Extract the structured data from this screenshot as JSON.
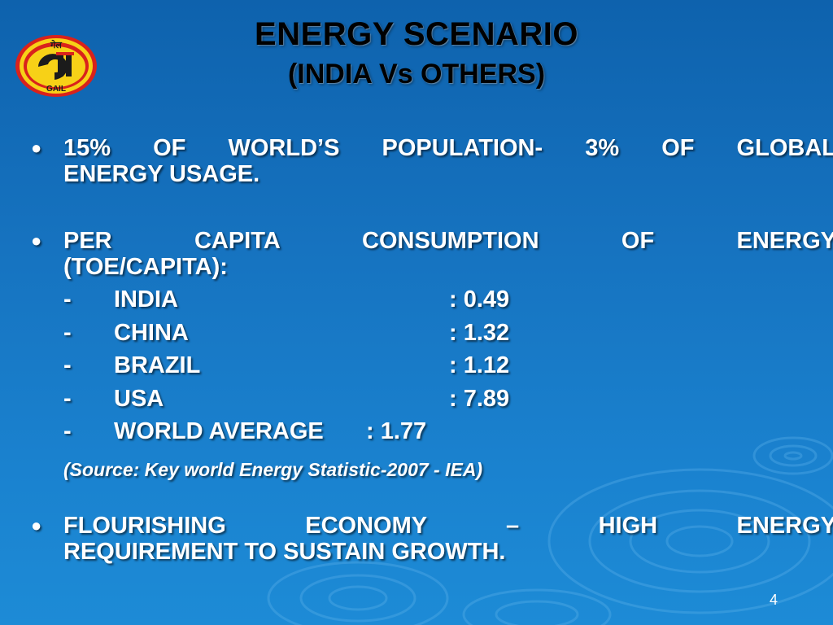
{
  "slide": {
    "title_line1": "ENERGY SCENARIO",
    "title_line2": "(INDIA Vs OTHERS)",
    "logo": {
      "text": "GAIL",
      "hindi_text": "गेल",
      "icon": "gail-logo"
    },
    "bullets": [
      {
        "line1": "15% OF WORLD’S POPULATION- 3% OF GLOBAL",
        "line2": "ENERGY USAGE."
      },
      {
        "line1": "PER CAPITA CONSUMPTION OF ENERGY",
        "line2": "(TOE/CAPITA):"
      },
      {
        "line1": "FLOURISHING ECONOMY – HIGH ENERGY",
        "line2": "REQUIREMENT TO SUSTAIN GROWTH."
      }
    ],
    "consumption": [
      {
        "dash": "-",
        "country": "INDIA",
        "value": ": 0.49"
      },
      {
        "dash": "-",
        "country": "CHINA",
        "value": ": 1.32"
      },
      {
        "dash": "-",
        "country": "BRAZIL",
        "value": ": 1.12"
      },
      {
        "dash": "-",
        "country": "USA",
        "value": ": 7.89"
      },
      {
        "dash": "-",
        "country": "WORLD AVERAGE",
        "value": ": 1.77"
      }
    ],
    "source": "(Source: Key world Energy Statistic-2007 - IEA)",
    "page_number": "4",
    "colors": {
      "background_top": "#0e62ad",
      "background_bottom": "#1d8bd6",
      "logo_yellow": "#f7d117",
      "logo_red": "#d9221c"
    }
  }
}
